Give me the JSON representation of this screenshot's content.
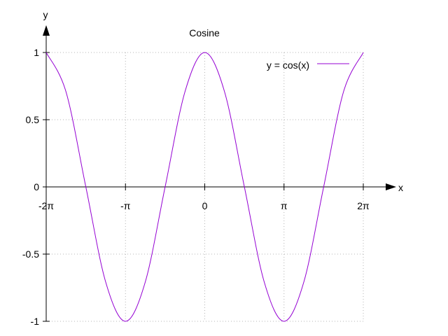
{
  "chart_data": {
    "type": "line",
    "title": "Cosine",
    "xlabel": "x",
    "ylabel": "y",
    "xlim": [
      -6.283185307179586,
      6.283185307179586
    ],
    "ylim": [
      -1,
      1
    ],
    "grid": true,
    "legend_position": "top-right",
    "x_ticks": [
      {
        "value": -6.283185307179586,
        "label": "-2π"
      },
      {
        "value": -3.141592653589793,
        "label": "-π"
      },
      {
        "value": 0,
        "label": "0"
      },
      {
        "value": 3.141592653589793,
        "label": "π"
      },
      {
        "value": 6.283185307179586,
        "label": "2π"
      }
    ],
    "y_ticks": [
      {
        "value": 1,
        "label": "1"
      },
      {
        "value": 0.5,
        "label": "0.5"
      },
      {
        "value": 0,
        "label": "0"
      },
      {
        "value": -0.5,
        "label": "-0.5"
      },
      {
        "value": -1,
        "label": "-1"
      }
    ],
    "series": [
      {
        "name": "y = cos(x)",
        "color": "#9400d3",
        "x": [
          -6.283185307179586,
          -5.497787143782138,
          -4.71238898038469,
          -3.9269908169872414,
          -3.141592653589793,
          -2.356194490192345,
          -1.5707963267948966,
          -0.7853981633974483,
          0,
          0.7853981633974483,
          1.5707963267948966,
          2.356194490192345,
          3.141592653589793,
          3.9269908169872414,
          4.71238898038469,
          5.497787143782138,
          6.283185307179586
        ],
        "y": [
          1,
          0.7071,
          0,
          -0.7071,
          -1,
          -0.7071,
          0,
          0.7071,
          1,
          0.7071,
          0,
          -0.7071,
          -1,
          -0.7071,
          0,
          0.7071,
          1
        ]
      }
    ]
  }
}
